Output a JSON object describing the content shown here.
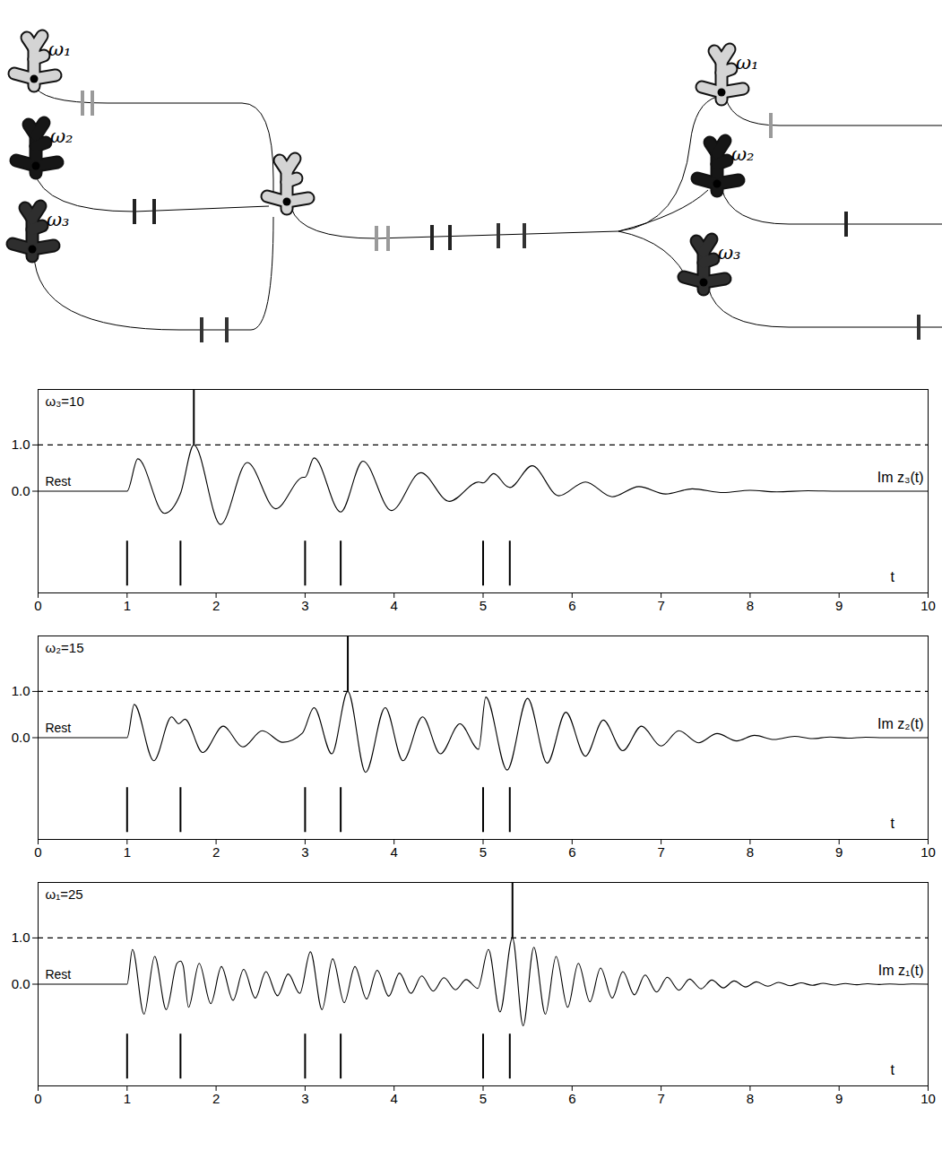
{
  "diagram": {
    "left_labels": [
      "ω₁",
      "ω₂",
      "ω₃"
    ],
    "right_labels": [
      "ω₁",
      "ω₂",
      "ω₃"
    ]
  },
  "chart_data": [
    {
      "type": "line",
      "title": "ω₃=10",
      "rest_label": "Rest",
      "x_label": "t",
      "xlim": [
        0,
        10
      ],
      "xticks": [
        0,
        1,
        2,
        3,
        4,
        5,
        6,
        7,
        8,
        9,
        10
      ],
      "ylim": [
        -2.2,
        2.2
      ],
      "yticks": [
        0,
        1
      ],
      "threshold": 1,
      "inputs": [
        1,
        1.6,
        3,
        3.4,
        5,
        5.3
      ],
      "input_range": [
        -2.05,
        -1.08
      ],
      "spike": {
        "t": 1.75,
        "top": 2.2
      },
      "x": [
        0,
        1,
        1.12,
        1.42,
        1.6,
        1.75,
        2.05,
        2.35,
        2.67,
        2.98,
        3.0,
        3.1,
        3.4,
        3.65,
        3.97,
        4.3,
        4.62,
        4.95,
        5.0,
        5.12,
        5.27,
        5.3,
        5.55,
        5.85,
        6.15,
        6.45,
        6.75,
        7.05,
        7.35,
        7.7,
        8.0,
        8.3,
        8.65,
        9.0,
        10
      ],
      "series": [
        {
          "name": "Im z₃(t)",
          "color": "#000000",
          "values": [
            0,
            0,
            0.7,
            -0.48,
            -0.05,
            1.0,
            -0.72,
            0.62,
            -0.38,
            0.3,
            0.3,
            0.72,
            -0.45,
            0.65,
            -0.42,
            0.4,
            -0.22,
            0.2,
            0.18,
            0.38,
            0.1,
            0.08,
            0.55,
            -0.1,
            0.2,
            -0.12,
            0.1,
            -0.06,
            0.05,
            -0.03,
            0.02,
            -0.015,
            0.01,
            0,
            0
          ]
        }
      ]
    },
    {
      "type": "line",
      "title": "ω₂=15",
      "rest_label": "Rest",
      "x_label": "t",
      "xlim": [
        0,
        10
      ],
      "xticks": [
        0,
        1,
        2,
        3,
        4,
        5,
        6,
        7,
        8,
        9,
        10
      ],
      "ylim": [
        -2.2,
        2.2
      ],
      "yticks": [
        0,
        1
      ],
      "threshold": 1,
      "inputs": [
        1,
        1.6,
        3,
        3.4,
        5,
        5.3
      ],
      "input_range": [
        -2.05,
        -1.08
      ],
      "spike": {
        "t": 3.48,
        "top": 2.2
      },
      "x": [
        0,
        1,
        1.08,
        1.3,
        1.5,
        1.58,
        1.65,
        1.85,
        2.08,
        2.3,
        2.52,
        2.75,
        2.97,
        3.1,
        3.3,
        3.48,
        3.68,
        3.9,
        4.1,
        4.32,
        4.52,
        4.74,
        4.95,
        5.03,
        5.27,
        5.5,
        5.72,
        5.93,
        6.15,
        6.35,
        6.57,
        6.78,
        7.0,
        7.2,
        7.42,
        7.63,
        7.85,
        8.05,
        8.27,
        8.5,
        8.7,
        8.9,
        9.1,
        9.3,
        9.5,
        10
      ],
      "series": [
        {
          "name": "Im z₂(t)",
          "color": "#000000",
          "values": [
            0,
            0,
            0.72,
            -0.5,
            0.45,
            0.3,
            0.4,
            -0.32,
            0.25,
            -0.2,
            0.15,
            -0.1,
            0.1,
            0.65,
            -0.35,
            1.0,
            -0.75,
            0.65,
            -0.5,
            0.45,
            -0.35,
            0.3,
            -0.25,
            0.88,
            -0.7,
            0.85,
            -0.55,
            0.55,
            -0.4,
            0.38,
            -0.28,
            0.25,
            -0.18,
            0.15,
            -0.11,
            0.09,
            -0.07,
            0.05,
            -0.04,
            0.03,
            -0.02,
            0.015,
            -0.01,
            0.01,
            0,
            0
          ]
        }
      ]
    },
    {
      "type": "line",
      "title": "ω₁=25",
      "rest_label": "Rest",
      "x_label": "t",
      "xlim": [
        0,
        10
      ],
      "xticks": [
        0,
        1,
        2,
        3,
        4,
        5,
        6,
        7,
        8,
        9,
        10
      ],
      "ylim": [
        -2.2,
        2.2
      ],
      "yticks": [
        0,
        1
      ],
      "threshold": 1,
      "inputs": [
        1,
        1.6,
        3,
        3.4,
        5,
        5.3
      ],
      "input_range": [
        -2.05,
        -1.08
      ],
      "spike": {
        "t": 5.33,
        "top": 2.2
      },
      "x": [
        0,
        1,
        1.06,
        1.19,
        1.31,
        1.44,
        1.56,
        1.6,
        1.63,
        1.69,
        1.81,
        1.94,
        2.06,
        2.19,
        2.31,
        2.44,
        2.56,
        2.69,
        2.81,
        2.94,
        3.06,
        3.19,
        3.31,
        3.44,
        3.56,
        3.69,
        3.81,
        3.94,
        4.06,
        4.19,
        4.31,
        4.44,
        4.56,
        4.69,
        4.81,
        4.94,
        5.06,
        5.19,
        5.33,
        5.45,
        5.57,
        5.7,
        5.82,
        5.95,
        6.07,
        6.2,
        6.32,
        6.45,
        6.57,
        6.7,
        6.82,
        6.95,
        7.07,
        7.2,
        7.32,
        7.45,
        7.57,
        7.7,
        7.82,
        7.95,
        8.07,
        8.2,
        8.32,
        8.45,
        8.57,
        8.7,
        8.82,
        8.95,
        9.07,
        9.2,
        9.32,
        9.45,
        9.57,
        9.7,
        9.82,
        10
      ],
      "series": [
        {
          "name": "Im z₁(t)",
          "color": "#000000",
          "values": [
            0,
            0,
            0.75,
            -0.65,
            0.6,
            -0.55,
            0.45,
            0.5,
            0.4,
            -0.5,
            0.45,
            -0.42,
            0.38,
            -0.35,
            0.32,
            -0.3,
            0.27,
            -0.25,
            0.22,
            -0.2,
            0.7,
            -0.55,
            0.55,
            -0.4,
            0.38,
            -0.32,
            0.3,
            -0.26,
            0.24,
            -0.2,
            0.18,
            -0.15,
            0.14,
            -0.12,
            0.1,
            -0.09,
            0.75,
            -0.6,
            1.0,
            -0.9,
            0.8,
            -0.65,
            0.6,
            -0.5,
            0.45,
            -0.38,
            0.35,
            -0.3,
            0.27,
            -0.23,
            0.2,
            -0.17,
            0.15,
            -0.13,
            0.11,
            -0.1,
            0.09,
            -0.08,
            0.07,
            -0.06,
            0.05,
            -0.045,
            0.04,
            -0.035,
            0.03,
            -0.025,
            0.02,
            -0.018,
            0.015,
            -0.012,
            0.01,
            -0.008,
            0.006,
            -0.005,
            0.004,
            0
          ]
        }
      ]
    }
  ]
}
